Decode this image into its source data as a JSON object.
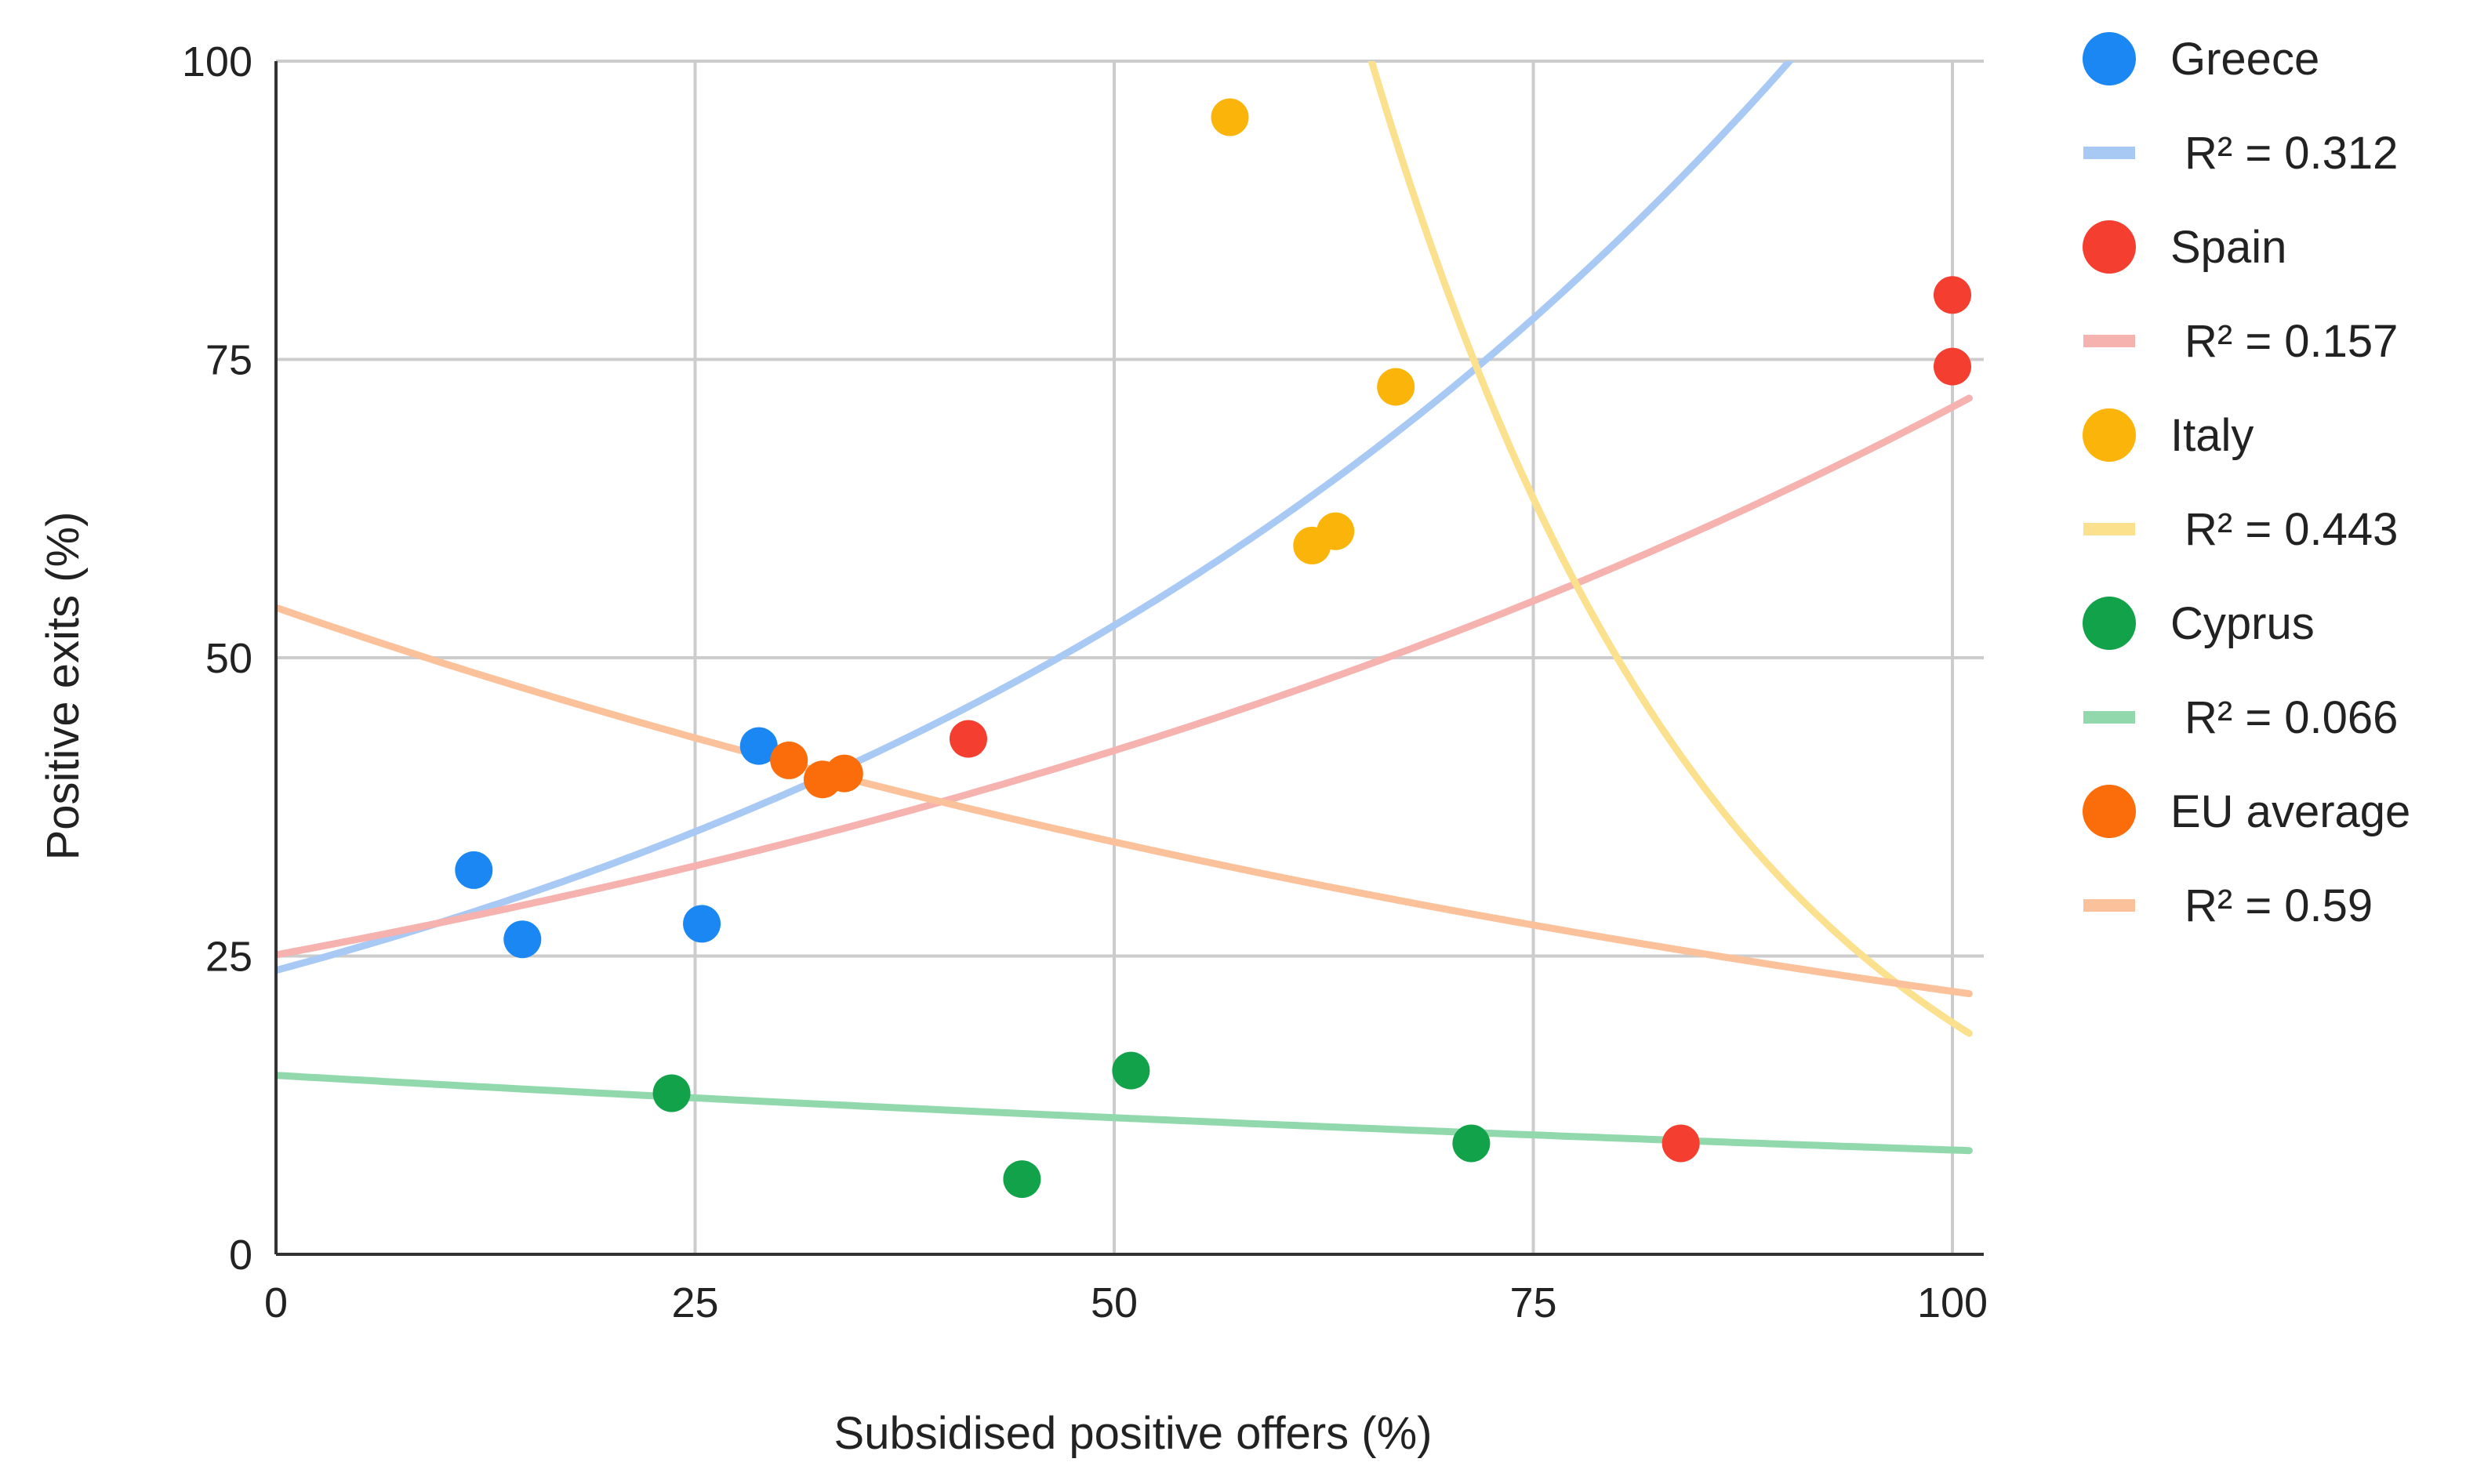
{
  "chart_data": {
    "type": "scatter",
    "title": "",
    "xlabel": "Subsidised positive offers (%)",
    "ylabel": "Positive exits (%)",
    "xlim": [
      0,
      100
    ],
    "ylim": [
      0,
      100
    ],
    "x_ticks": [
      0,
      25,
      50,
      75,
      100
    ],
    "y_ticks": [
      0,
      25,
      50,
      75,
      100
    ],
    "grid": true,
    "legend_position": "right",
    "series": [
      {
        "name": "Greece",
        "color": "#1a87f3",
        "trend_color": "#a8c9f4",
        "r2_label": "R² = 0.312",
        "points": [
          [
            11.8,
            32.2
          ],
          [
            14.7,
            26.4
          ],
          [
            25.4,
            27.7
          ],
          [
            28.8,
            42.6
          ]
        ],
        "trend": {
          "kind": "exponential",
          "a": 23.8,
          "b": 0.0159
        }
      },
      {
        "name": "Spain",
        "color": "#f43f30",
        "trend_color": "#f5b2ae",
        "r2_label": "R² = 0.157",
        "points": [
          [
            41.3,
            43.2
          ],
          [
            83.8,
            9.3
          ],
          [
            100,
            80.4
          ],
          [
            100,
            74.4
          ]
        ],
        "trend": {
          "kind": "exponential",
          "a": 25.1,
          "b": 0.0104
        }
      },
      {
        "name": "Italy",
        "color": "#fbb40a",
        "trend_color": "#fbe08e",
        "r2_label": "R² = 0.443",
        "points": [
          [
            56.9,
            95.3
          ],
          [
            61.8,
            59.4
          ],
          [
            63.2,
            60.6
          ],
          [
            66.8,
            72.7
          ]
        ],
        "trend": {
          "kind": "exponential",
          "a": 2200,
          "b": -0.0473
        }
      },
      {
        "name": "Cyprus",
        "color": "#12a24a",
        "trend_color": "#92d8ad",
        "r2_label": "R² = 0.066",
        "points": [
          [
            23.6,
            13.5
          ],
          [
            44.5,
            6.3
          ],
          [
            51.0,
            15.4
          ],
          [
            71.3,
            9.3
          ]
        ],
        "trend": {
          "kind": "exponential",
          "a": 15.0,
          "b": -0.0054
        }
      },
      {
        "name": "EU average",
        "color": "#fb6d0a",
        "trend_color": "#fbc19a",
        "r2_label": "R² = 0.59",
        "points": [
          [
            30.6,
            41.4
          ],
          [
            32.6,
            39.8
          ],
          [
            33.9,
            40.3
          ]
        ],
        "trend": {
          "kind": "exponential",
          "a": 54.2,
          "b": -0.009
        }
      }
    ]
  }
}
